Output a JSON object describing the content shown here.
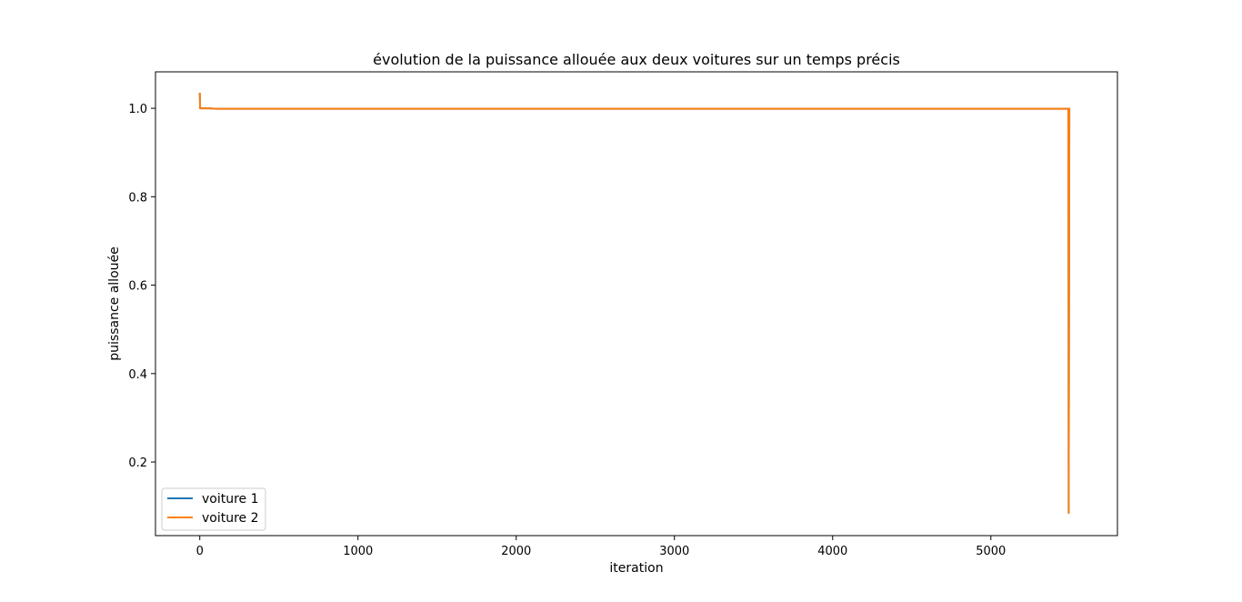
{
  "chart_data": {
    "type": "line",
    "title": "évolution de la puissance allouée aux deux voitures sur un temps précis",
    "xlabel": "iteration",
    "ylabel": "puissance allouée",
    "xlim": [
      -280,
      5800
    ],
    "ylim": [
      0.0335,
      1.0825
    ],
    "xticks": [
      0,
      1000,
      2000,
      3000,
      4000,
      5000
    ],
    "xtick_labels": [
      "0",
      "1000",
      "2000",
      "3000",
      "4000",
      "5000"
    ],
    "yticks": [
      0.2,
      0.4,
      0.6,
      0.8,
      1.0
    ],
    "ytick_labels": [
      "0.2",
      "0.4",
      "0.6",
      "0.8",
      "1.0"
    ],
    "grid": false,
    "legend_position": "lower-left",
    "series": [
      {
        "name": "voiture 1",
        "color": "#1f77b4",
        "points": [
          [
            0,
            1.035
          ],
          [
            2,
            1.0
          ],
          [
            60,
            1.0
          ],
          [
            100,
            0.999
          ],
          [
            5490,
            0.999
          ],
          [
            5492,
            0.085
          ],
          [
            5496,
            0.999
          ],
          [
            5500,
            1.0
          ]
        ]
      },
      {
        "name": "voiture 2",
        "color": "#ff7f0e",
        "points": [
          [
            0,
            1.035
          ],
          [
            2,
            1.0
          ],
          [
            60,
            1.0
          ],
          [
            100,
            0.999
          ],
          [
            5490,
            0.999
          ],
          [
            5492,
            0.085
          ],
          [
            5496,
            0.999
          ],
          [
            5500,
            1.0
          ]
        ]
      }
    ]
  }
}
